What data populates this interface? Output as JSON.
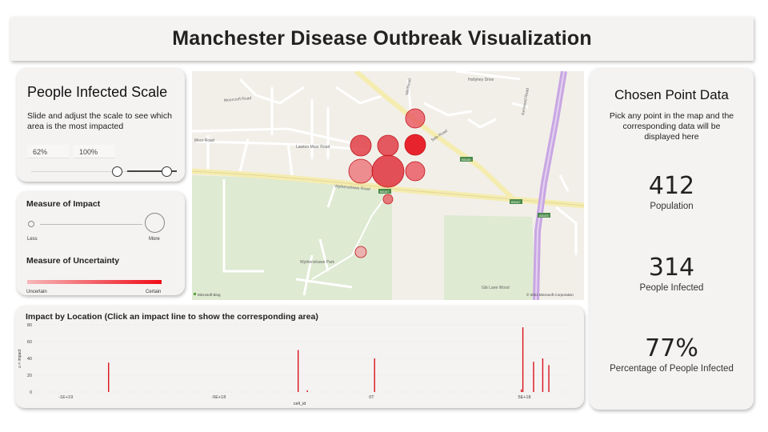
{
  "header": {
    "title": "Manchester Disease Outbreak Visualization"
  },
  "scale_panel": {
    "title": "People Infected Scale",
    "description": "Slide and adjust the scale to see which area is the most impacted",
    "min_value": "62%",
    "max_value": "100%",
    "range": [
      0.62,
      1.0
    ]
  },
  "legend_panel": {
    "impact_title": "Measure of Impact",
    "impact_low": "Less",
    "impact_high": "More",
    "uncertainty_title": "Measure of Uncertainty",
    "uncertainty_low": "Uncertain",
    "uncertainty_high": "Certain",
    "low_color": "#f6b7b9",
    "high_color": "#f00c18"
  },
  "map": {
    "roads": [
      "Moorcroft Road",
      "Lawton Moor Road",
      "Wythenshawe Road",
      "Sale Road",
      "Hollyhey Drive",
      "Kenwood Road",
      "Wythenshawe Park",
      "Gib Lane Wood",
      "Moor Road",
      "Wellhead"
    ],
    "shields": [
      "B5166",
      "B5167",
      "B5167",
      "A5103",
      "A5103"
    ],
    "attribution_left": "Microsoft Bing",
    "attribution_right": "© 2021 Microsoft Corporation"
  },
  "chart_data": {
    "type": "bar",
    "title": "Impact by Location (Click an impact line to show the corresponding area)",
    "xlabel": "cell_id",
    "ylabel": "u × impact",
    "xlim": [
      -1.1e+19,
      6.4e+18
    ],
    "ylim": [
      0,
      80
    ],
    "x_ticks": [
      "-1E+19",
      "-5E+18",
      "0T",
      "5E+18"
    ],
    "x_tick_values": [
      -1e+19,
      -5e+18,
      0,
      5e+18
    ],
    "y_ticks": [
      "0",
      "20",
      "40",
      "60",
      "80"
    ],
    "y_tick_values": [
      0,
      20,
      40,
      60,
      80
    ],
    "grid": true,
    "bars": [
      {
        "x": -8.6e+18,
        "y": 35
      },
      {
        "x": -2.4e+18,
        "y": 50
      },
      {
        "x": -2.1e+18,
        "y": 2
      },
      {
        "x": 1e+17,
        "y": 40
      },
      {
        "x": 4.9e+18,
        "y": 3
      },
      {
        "x": 4.95e+18,
        "y": 77
      },
      {
        "x": 5.3e+18,
        "y": 36
      },
      {
        "x": 5.6e+18,
        "y": 40
      },
      {
        "x": 5.8e+18,
        "y": 32
      }
    ]
  },
  "point_panel": {
    "title": "Chosen Point Data",
    "description": "Pick any point in the map and the corresponding data will be displayed here",
    "stats": [
      {
        "value": "412",
        "label": "Population"
      },
      {
        "value": "314",
        "label": "People Infected"
      },
      {
        "value": "77%",
        "label": "Percentage of People Infected"
      }
    ]
  }
}
